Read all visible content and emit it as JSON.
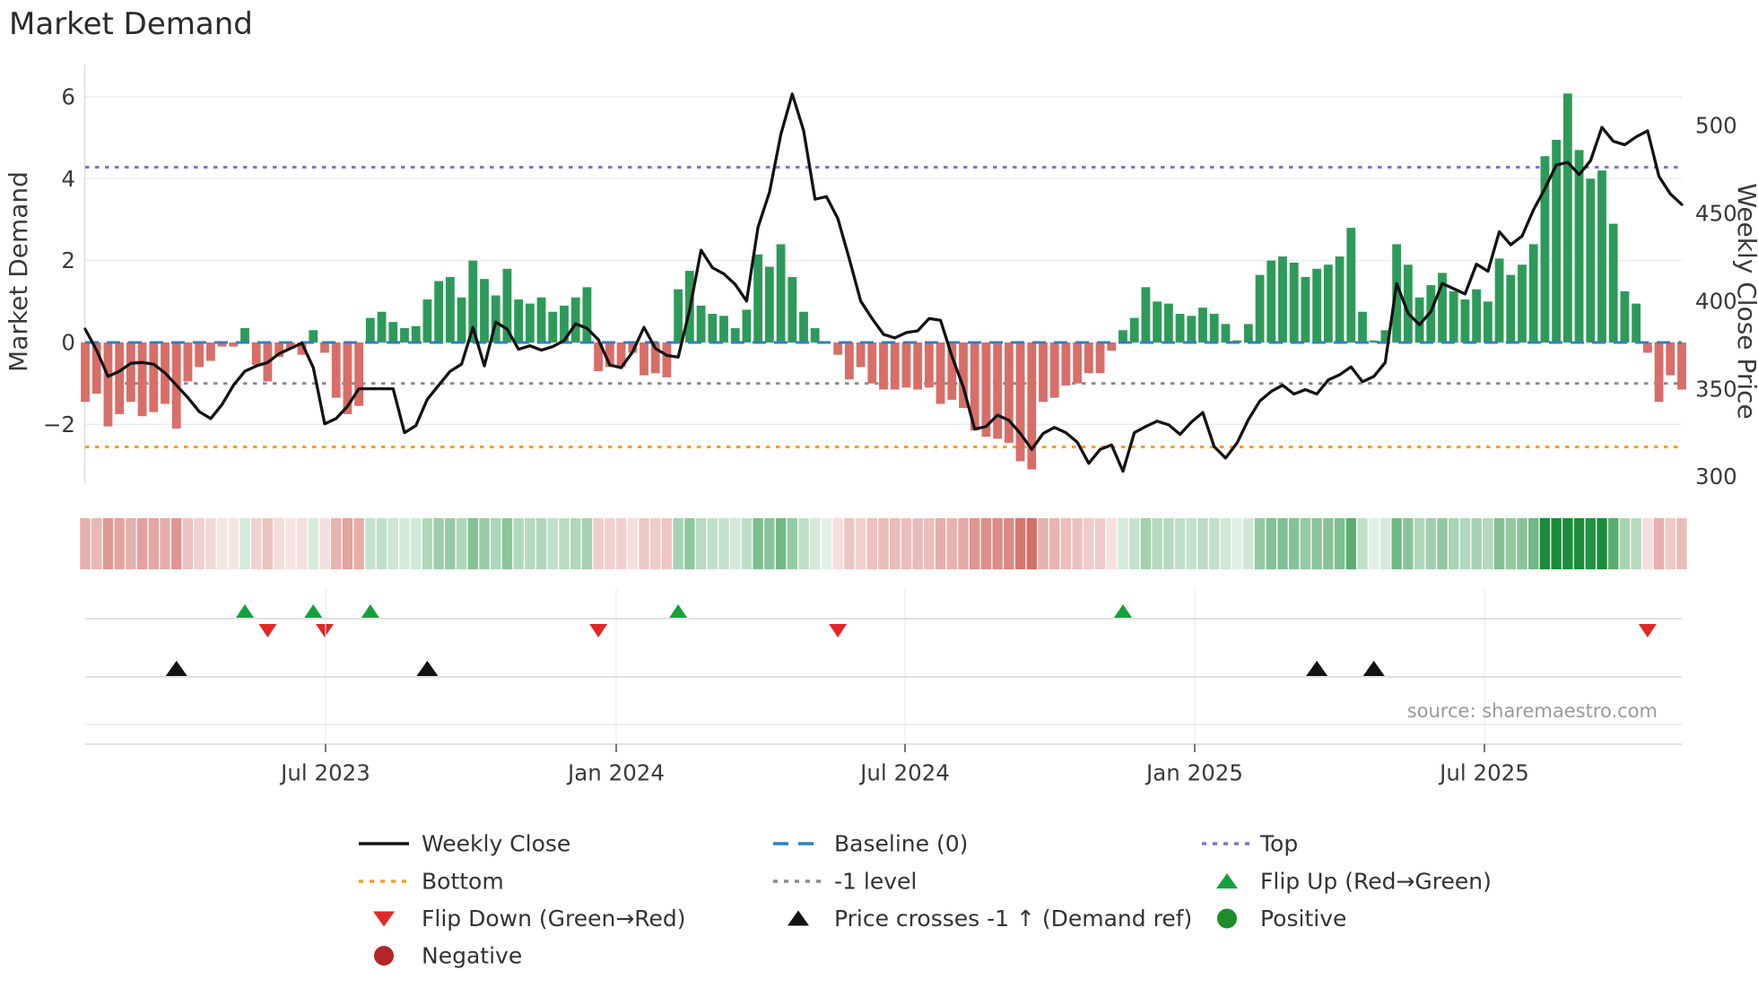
{
  "title": "Market Demand",
  "axes": {
    "y_left": {
      "label": "Market Demand",
      "ticks": [
        "6",
        "4",
        "2",
        "0",
        "−2"
      ]
    },
    "y_right": {
      "label": "Weekly Close Price",
      "ticks": [
        "500",
        "450",
        "400",
        "350",
        "300"
      ]
    },
    "x": {
      "ticks": [
        "Jul 2023",
        "Jan 2024",
        "Jul 2024",
        "Jan 2025",
        "Jul 2025"
      ]
    }
  },
  "source": "source: sharemaestro.com",
  "legend": {
    "col1": [
      {
        "label": "Weekly Close",
        "marker": "line",
        "color": "#131313"
      },
      {
        "label": "Bottom",
        "marker": "dotted",
        "color": "#f59d2d"
      },
      {
        "label": "Flip Down (Green→Red)",
        "marker": "triangle-down",
        "color": "#e22727"
      },
      {
        "label": "Negative",
        "marker": "circle",
        "color": "#b2252b"
      }
    ],
    "col2": [
      {
        "label": "Baseline (0)",
        "marker": "dashed",
        "color": "#2e80c2"
      },
      {
        "label": "-1 level",
        "marker": "dotted",
        "color": "#8a8a8a"
      },
      {
        "label": "Price crosses -1 ↑ (Demand ref)",
        "marker": "triangle-up",
        "color": "#131313"
      }
    ],
    "col3": [
      {
        "label": "Top",
        "marker": "dotted",
        "color": "#7e71d8"
      },
      {
        "label": "Flip Up (Red→Green)",
        "marker": "triangle-up",
        "color": "#15a03c"
      },
      {
        "label": "Positive",
        "marker": "circle",
        "color": "#1e8c28"
      }
    ]
  },
  "chart_data": {
    "type": "combo: weekly bar (Market Demand) + line (Weekly Close Price) + heatmap strip + event markers",
    "title": "Market Demand",
    "x_start_date": "2023-02-03",
    "x_step_days": 7,
    "n_weeks": 141,
    "x_tick_labels": [
      "Jul 2023",
      "Jan 2024",
      "Jul 2024",
      "Jan 2025",
      "Jul 2025"
    ],
    "ylabel_left": "Market Demand",
    "ylabel_right": "Weekly Close Price",
    "ylim_demand": [
      -3.6,
      6.8
    ],
    "ylim_price": [
      295,
      525
    ],
    "grid_demand_levels": [
      6,
      4,
      2,
      0,
      -2
    ],
    "price_tick_levels": [
      500,
      450,
      400,
      350,
      300
    ],
    "reference_lines": {
      "baseline": 0,
      "top": 4.28,
      "bottom": -2.55,
      "minus_one": -1
    },
    "demand": [
      -1.45,
      -1.25,
      -2.05,
      -1.75,
      -1.45,
      -1.8,
      -1.7,
      -1.5,
      -2.1,
      -0.95,
      -0.6,
      -0.45,
      -0.1,
      -0.1,
      0.35,
      -0.55,
      -0.95,
      -0.35,
      -0.15,
      -0.3,
      0.3,
      -0.25,
      -1.35,
      -1.75,
      -1.55,
      0.6,
      0.75,
      0.5,
      0.35,
      0.4,
      1.05,
      1.5,
      1.6,
      1.1,
      2.0,
      1.55,
      1.15,
      1.8,
      1.05,
      0.95,
      1.1,
      0.75,
      0.9,
      1.1,
      1.35,
      -0.7,
      -0.6,
      -0.6,
      -0.25,
      -0.8,
      -0.75,
      -0.85,
      1.3,
      1.75,
      0.9,
      0.7,
      0.65,
      0.35,
      0.8,
      2.15,
      1.85,
      2.4,
      1.6,
      0.75,
      0.35,
      0.0,
      -0.3,
      -0.9,
      -0.6,
      -1.0,
      -1.15,
      -1.15,
      -1.1,
      -1.15,
      -1.1,
      -1.5,
      -1.4,
      -1.6,
      -2.15,
      -2.3,
      -2.35,
      -2.45,
      -2.9,
      -3.1,
      -1.45,
      -1.35,
      -1.05,
      -1.0,
      -0.75,
      -0.75,
      -0.2,
      0.3,
      0.6,
      1.35,
      1.0,
      0.95,
      0.7,
      0.65,
      0.85,
      0.7,
      0.45,
      0.05,
      0.45,
      1.65,
      2.0,
      2.1,
      1.95,
      1.6,
      1.8,
      1.9,
      2.1,
      2.8,
      0.75,
      0.05,
      0.3,
      2.4,
      1.9,
      1.1,
      1.4,
      1.7,
      1.25,
      1.05,
      1.3,
      1.0,
      2.05,
      1.65,
      1.9,
      2.4,
      4.55,
      4.95,
      6.08,
      4.7,
      4.0,
      4.2,
      2.9,
      1.25,
      0.95,
      -0.25,
      -1.45,
      -0.8,
      -1.15
    ],
    "price": [
      384,
      372,
      357,
      360,
      364.5,
      365,
      364,
      359,
      352,
      345,
      337,
      333,
      341,
      352,
      360,
      363,
      365,
      370,
      373,
      376,
      362,
      330,
      333,
      340,
      350,
      350,
      350,
      350,
      325,
      329,
      344,
      352,
      360,
      364,
      385,
      363,
      388,
      384,
      372.5,
      374.5,
      372,
      374,
      377.5,
      387,
      384.5,
      378,
      363.5,
      362,
      371,
      385,
      373,
      369,
      368,
      395,
      429,
      419,
      415.5,
      409.5,
      400,
      442,
      462,
      495,
      518,
      497,
      458,
      459.5,
      447,
      424,
      400,
      390,
      381,
      379,
      382,
      383,
      390,
      389,
      368.5,
      351,
      327,
      328.5,
      335,
      332,
      324.5,
      315.5,
      324.5,
      328,
      325,
      319.5,
      307.5,
      315.5,
      318,
      303,
      325,
      328.5,
      331.5,
      329.5,
      324,
      331,
      336.5,
      317,
      310.5,
      319,
      332.5,
      343,
      348.5,
      352,
      347,
      349.5,
      347,
      355,
      358,
      362.5,
      354,
      357,
      365,
      410,
      393,
      386.5,
      394,
      410,
      407,
      404,
      421,
      417,
      439.5,
      432,
      437,
      452,
      464,
      477.5,
      479,
      472,
      480,
      499,
      491,
      489,
      493.5,
      497,
      471,
      461,
      455
    ],
    "markers": {
      "flip_up_weeks": [
        14,
        20,
        25,
        52,
        91
      ],
      "flip_down_weeks": [
        16,
        21,
        45,
        66,
        137
      ],
      "price_cross_weeks": [
        8,
        30,
        108,
        113
      ]
    },
    "colors": {
      "bar_positive": "#2e9a59",
      "bar_negative": "#d96d68",
      "price_line": "#131313",
      "baseline": "#2e80c2",
      "top_line": "#7e71d8",
      "bottom_line": "#f59d2d",
      "minus_one_line": "#8a8a8a",
      "flip_up_marker": "#15a03c",
      "flip_down_marker": "#e22727",
      "price_cross_marker": "#131313",
      "heat_positive_base": "27,140,58",
      "heat_negative_base": "198,68,60"
    },
    "legend_position": "bottom",
    "grid": "horizontal-only"
  }
}
